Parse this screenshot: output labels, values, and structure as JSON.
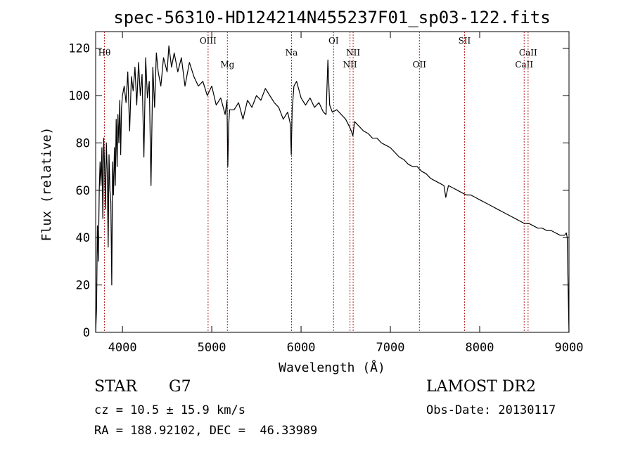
{
  "chart_data": {
    "type": "line",
    "title": "spec-56310-HD124214N455237F01_sp03-122.fits",
    "xlabel": "Wavelength (Å)",
    "ylabel": "Flux (relative)",
    "xlim": [
      3700,
      9000
    ],
    "ylim": [
      0,
      127
    ],
    "x_ticks": [
      4000,
      5000,
      6000,
      7000,
      8000,
      9000
    ],
    "y_ticks": [
      0,
      20,
      40,
      60,
      80,
      100,
      120
    ],
    "grid": false,
    "line_color": "#000000",
    "marker_color": "#b22222",
    "series": [
      {
        "x": [
          3700,
          3710,
          3720,
          3730,
          3740,
          3750,
          3760,
          3770,
          3780,
          3790,
          3800,
          3810,
          3820,
          3830,
          3840,
          3850,
          3860,
          3870,
          3880,
          3890,
          3900,
          3910,
          3920,
          3930,
          3940,
          3950,
          3960,
          3970,
          3980,
          3990,
          4000,
          4020,
          4040,
          4060,
          4080,
          4100,
          4120,
          4140,
          4160,
          4180,
          4200,
          4220,
          4240,
          4260,
          4280,
          4300,
          4320,
          4340,
          4360,
          4380,
          4400,
          4430,
          4460,
          4500,
          4520,
          4550,
          4580,
          4620,
          4660,
          4700,
          4750,
          4800,
          4850,
          4900,
          4950,
          5000,
          5050,
          5100,
          5150,
          5170,
          5180,
          5190,
          5200,
          5250,
          5300,
          5350,
          5400,
          5450,
          5500,
          5550,
          5600,
          5650,
          5700,
          5750,
          5800,
          5850,
          5880,
          5890,
          5900,
          5920,
          5950,
          6000,
          6050,
          6100,
          6150,
          6200,
          6250,
          6280,
          6300,
          6320,
          6350,
          6400,
          6450,
          6500,
          6540,
          6563,
          6580,
          6600,
          6650,
          6700,
          6750,
          6800,
          6850,
          6900,
          6950,
          7000,
          7050,
          7100,
          7150,
          7200,
          7250,
          7300,
          7350,
          7400,
          7450,
          7500,
          7550,
          7600,
          7620,
          7650,
          7700,
          7750,
          7800,
          7850,
          7900,
          7950,
          8000,
          8050,
          8100,
          8150,
          8200,
          8250,
          8300,
          8350,
          8400,
          8450,
          8500,
          8550,
          8600,
          8650,
          8700,
          8750,
          8800,
          8850,
          8900,
          8950,
          8970,
          8980,
          8990,
          9000
        ],
        "y": [
          0,
          10,
          45,
          30,
          60,
          72,
          62,
          78,
          48,
          82,
          70,
          52,
          80,
          68,
          36,
          75,
          60,
          55,
          20,
          72,
          58,
          78,
          62,
          90,
          70,
          92,
          80,
          98,
          75,
          95,
          100,
          104,
          97,
          110,
          85,
          108,
          102,
          112,
          96,
          114,
          100,
          109,
          74,
          116,
          99,
          106,
          62,
          112,
          95,
          118,
          110,
          104,
          116,
          110,
          121,
          112,
          118,
          110,
          116,
          104,
          114,
          108,
          104,
          106,
          100,
          104,
          96,
          99,
          92,
          98,
          70,
          88,
          94,
          94,
          97,
          90,
          98,
          95,
          100,
          98,
          103,
          100,
          97,
          95,
          90,
          93,
          88,
          75,
          94,
          104,
          106,
          99,
          96,
          99,
          95,
          97,
          93,
          92,
          115,
          96,
          93,
          94,
          92,
          90,
          87,
          85,
          83,
          89,
          87,
          85,
          84,
          82,
          82,
          80,
          79,
          78,
          76,
          74,
          73,
          71,
          70,
          70,
          68,
          67,
          65,
          64,
          63,
          62,
          57,
          62,
          61,
          60,
          59,
          58,
          58,
          57,
          56,
          55,
          54,
          53,
          52,
          51,
          50,
          49,
          48,
          47,
          46,
          46,
          45,
          44,
          44,
          43,
          43,
          42,
          41,
          41,
          42,
          40,
          20,
          0
        ]
      }
    ],
    "line_markers": [
      {
        "label": "Hθ",
        "x": 3798,
        "label_level": "upper"
      },
      {
        "label": "OIII",
        "x": 4959,
        "label_level": "top"
      },
      {
        "label": "Mg",
        "x": 5175,
        "label_level": "lower"
      },
      {
        "label": "Na",
        "x": 5893,
        "label_level": "upper"
      },
      {
        "label": "OI",
        "x": 6364,
        "label_level": "top"
      },
      {
        "label": "NII",
        "x": 6548,
        "label_level": "lower"
      },
      {
        "label": "NII",
        "x": 6583,
        "label_level": "upper"
      },
      {
        "label": "OII",
        "x": 7325,
        "label_level": "lower"
      },
      {
        "label": "SII",
        "x": 7830,
        "label_level": "top"
      },
      {
        "label": "CaII",
        "x": 8498,
        "label_level": "lower"
      },
      {
        "label": "CaII",
        "x": 8542,
        "label_level": "upper"
      }
    ]
  },
  "info": {
    "object_type": "STAR",
    "subclass": "G7",
    "survey": "LAMOST DR2",
    "cz": "cz = 10.5 ± 15.9 km/s",
    "obs_date": "Obs-Date: 20130117",
    "coords": "RA = 188.92102, DEC =  46.33989"
  }
}
